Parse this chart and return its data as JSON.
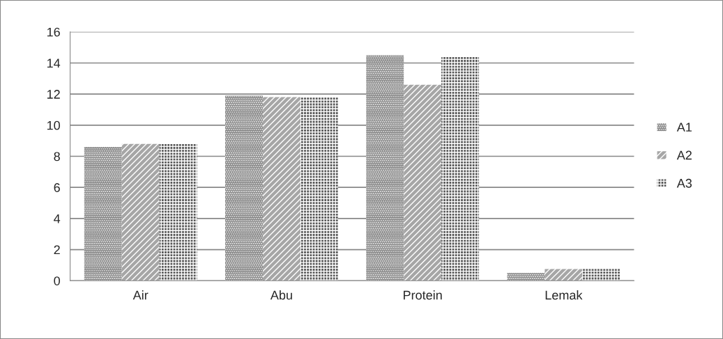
{
  "chart_data": {
    "type": "bar",
    "categories": [
      "Air",
      "Abu",
      "Protein",
      "Lemak"
    ],
    "series": [
      {
        "name": "A1",
        "color": "#7f7f7f",
        "values": [
          8.6,
          11.9,
          14.5,
          0.5
        ]
      },
      {
        "name": "A2",
        "color": "#a6a6a6",
        "values": [
          8.8,
          11.8,
          12.6,
          0.75
        ]
      },
      {
        "name": "A3",
        "color": "#595959",
        "values": [
          8.8,
          11.8,
          14.4,
          0.75
        ]
      }
    ],
    "ylim": [
      0,
      16
    ],
    "yticks": [
      0,
      2,
      4,
      6,
      8,
      10,
      12,
      14,
      16
    ],
    "grid": "y",
    "legend": "right"
  }
}
